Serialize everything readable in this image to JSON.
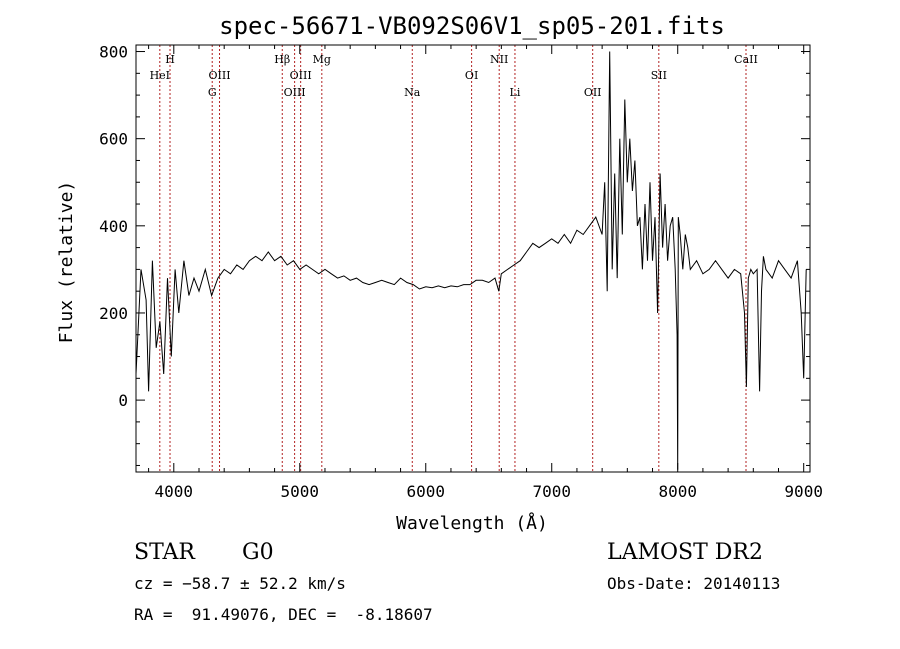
{
  "chart_data": {
    "type": "line",
    "title": "spec-56671-VB092S06V1_sp05-201.fits",
    "xlabel": "Wavelength (Å)",
    "ylabel": "Flux (relative)",
    "xlim": [
      3700,
      9050
    ],
    "ylim": [
      -165,
      815
    ],
    "xticks": [
      4000,
      5000,
      6000,
      7000,
      8000,
      9000
    ],
    "yticks": [
      0,
      200,
      400,
      600,
      800
    ],
    "grid": false,
    "line_color": "#000000",
    "lines": [
      {
        "name": "HeI",
        "wavelength": 3889,
        "row": 2
      },
      {
        "name": "H",
        "wavelength": 3970,
        "row": 1
      },
      {
        "name": "G",
        "wavelength": 4305,
        "row": 3
      },
      {
        "name": "OIII",
        "wavelength": 4363,
        "row": 2
      },
      {
        "name": "Hβ",
        "wavelength": 4861,
        "row": 1
      },
      {
        "name": "OIII",
        "wavelength": 4959,
        "row": 3
      },
      {
        "name": "OIII",
        "wavelength": 5007,
        "row": 2
      },
      {
        "name": "Mg",
        "wavelength": 5175,
        "row": 1
      },
      {
        "name": "Na",
        "wavelength": 5893,
        "row": 3
      },
      {
        "name": "OI",
        "wavelength": 6364,
        "row": 2
      },
      {
        "name": "NII",
        "wavelength": 6583,
        "row": 1
      },
      {
        "name": "Li",
        "wavelength": 6708,
        "row": 3
      },
      {
        "name": "OII",
        "wavelength": 7325,
        "row": 3
      },
      {
        "name": "SII",
        "wavelength": 7850,
        "row": 2
      },
      {
        "name": "CaII",
        "wavelength": 8542,
        "row": 1
      }
    ],
    "series": [
      {
        "x": [
          3700,
          3740,
          3780,
          3800,
          3830,
          3860,
          3890,
          3920,
          3950,
          3980,
          4010,
          4040,
          4080,
          4120,
          4160,
          4200,
          4250,
          4300,
          4350,
          4400,
          4450,
          4500,
          4550,
          4600,
          4650,
          4700,
          4750,
          4800,
          4850,
          4900,
          4950,
          5000,
          5050,
          5100,
          5150,
          5200,
          5250,
          5300,
          5350,
          5400,
          5450,
          5500,
          5550,
          5600,
          5650,
          5700,
          5750,
          5800,
          5850,
          5900,
          5950,
          6000,
          6050,
          6100,
          6150,
          6200,
          6250,
          6300,
          6350,
          6400,
          6450,
          6500,
          6550,
          6580,
          6600,
          6650,
          6700,
          6750,
          6800,
          6850,
          6900,
          6950,
          7000,
          7050,
          7100,
          7150,
          7200,
          7250,
          7300,
          7350,
          7400,
          7420,
          7440,
          7460,
          7480,
          7500,
          7520,
          7540,
          7560,
          7580,
          7600,
          7620,
          7640,
          7660,
          7680,
          7700,
          7720,
          7740,
          7760,
          7780,
          7800,
          7820,
          7840,
          7860,
          7880,
          7900,
          7920,
          7940,
          7960,
          7980,
          7995,
          8000,
          8005,
          8020,
          8040,
          8060,
          8080,
          8100,
          8150,
          8200,
          8250,
          8300,
          8350,
          8400,
          8450,
          8500,
          8530,
          8545,
          8560,
          8580,
          8600,
          8630,
          8650,
          8665,
          8680,
          8700,
          8750,
          8800,
          8850,
          8900,
          8950,
          8980,
          9000,
          9020
        ],
        "y": [
          60,
          300,
          230,
          20,
          320,
          120,
          180,
          60,
          280,
          100,
          300,
          200,
          320,
          240,
          280,
          250,
          300,
          240,
          280,
          300,
          290,
          310,
          300,
          320,
          330,
          320,
          340,
          320,
          330,
          310,
          320,
          300,
          310,
          300,
          290,
          300,
          290,
          280,
          285,
          275,
          280,
          270,
          265,
          270,
          275,
          270,
          265,
          280,
          270,
          265,
          255,
          260,
          258,
          262,
          258,
          262,
          260,
          265,
          265,
          275,
          275,
          270,
          280,
          250,
          290,
          300,
          310,
          320,
          340,
          360,
          350,
          360,
          370,
          360,
          380,
          360,
          390,
          380,
          400,
          420,
          380,
          500,
          250,
          800,
          300,
          520,
          280,
          600,
          380,
          690,
          500,
          600,
          480,
          550,
          400,
          420,
          300,
          450,
          320,
          500,
          320,
          420,
          200,
          520,
          350,
          450,
          320,
          400,
          420,
          300,
          150,
          -160,
          420,
          380,
          300,
          380,
          350,
          300,
          320,
          290,
          300,
          320,
          300,
          280,
          300,
          290,
          200,
          30,
          280,
          300,
          290,
          300,
          20,
          250,
          330,
          300,
          280,
          320,
          300,
          280,
          320,
          200,
          50,
          300
        ]
      }
    ]
  },
  "info": {
    "class": "STAR",
    "subclass": "G0",
    "survey": "LAMOST DR2",
    "cz": "cz = −58.7 ± 52.2 km/s",
    "obs_date": "Obs-Date: 20140113",
    "coords": "RA =  91.49076, DEC =  -8.18607"
  }
}
